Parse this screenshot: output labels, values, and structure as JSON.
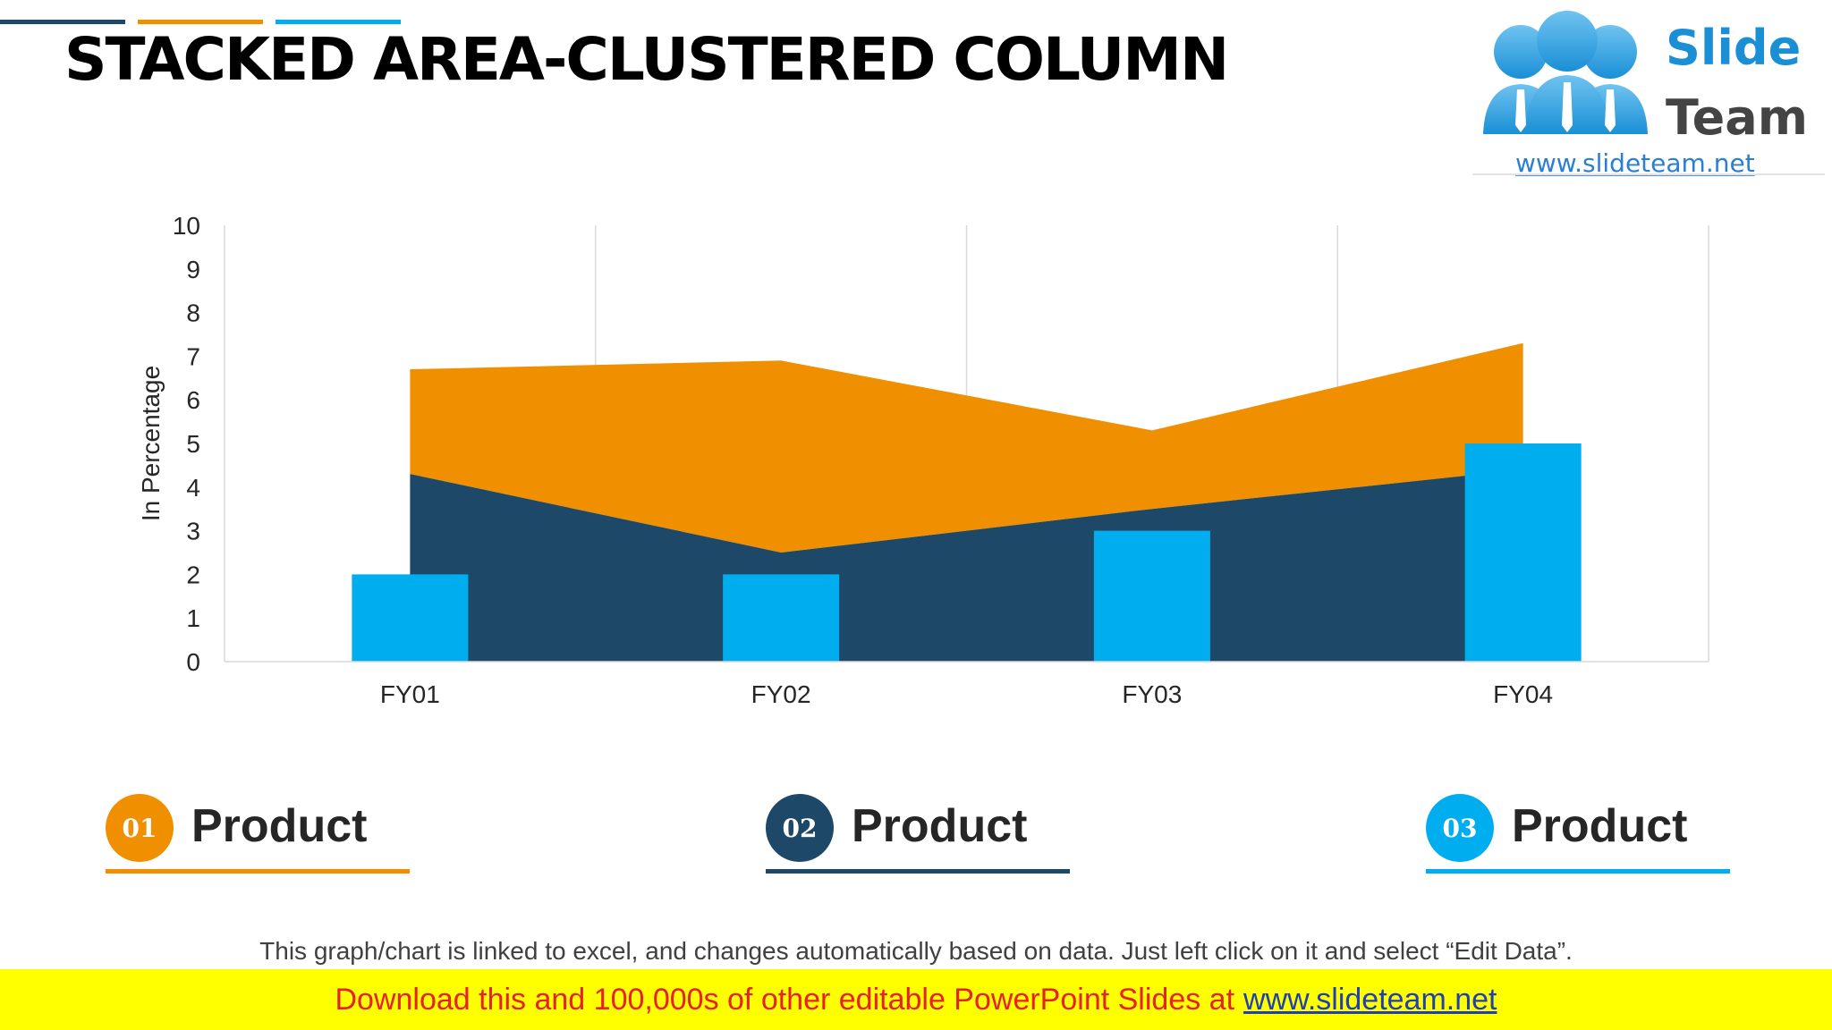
{
  "title": "STACKED AREA-CLUSTERED COLUMN",
  "logo": {
    "word1": "Slide",
    "word2": "Team",
    "url": "www.slideteam.net"
  },
  "colors": {
    "accent1": "#f08f00",
    "accent2": "#1d4868",
    "accent3": "#00aeef",
    "line1": "#1d4868",
    "line2": "#f08f00",
    "line3": "#00aeef"
  },
  "chart_data": {
    "type": "area+bar",
    "categories": [
      "FY01",
      "FY02",
      "FY03",
      "FY04"
    ],
    "series": [
      {
        "kind": "area",
        "values": [
          4.3,
          2.5,
          3.5,
          4.4
        ]
      },
      {
        "kind": "area-stacked",
        "values": [
          2.4,
          4.4,
          1.8,
          2.9
        ]
      },
      {
        "kind": "column",
        "values": [
          2,
          2,
          3,
          5
        ]
      }
    ],
    "ylabel": "In Percentage",
    "xlabel": "",
    "ylim": [
      0,
      10
    ],
    "yticks": [
      "0",
      "1",
      "2",
      "3",
      "4",
      "5",
      "6",
      "7",
      "8",
      "9",
      "10"
    ],
    "grid": "vertical"
  },
  "legend": [
    {
      "number": "01",
      "label": "Product"
    },
    {
      "number": "02",
      "label": "Product"
    },
    {
      "number": "03",
      "label": "Product"
    }
  ],
  "footnote": "This graph/chart is linked to excel, and changes automatically based on data. Just left click on it and select “Edit Data”.",
  "banner": {
    "text": "Download this and 100,000s of other editable PowerPoint Slides at",
    "link": "www.slideteam.net"
  }
}
